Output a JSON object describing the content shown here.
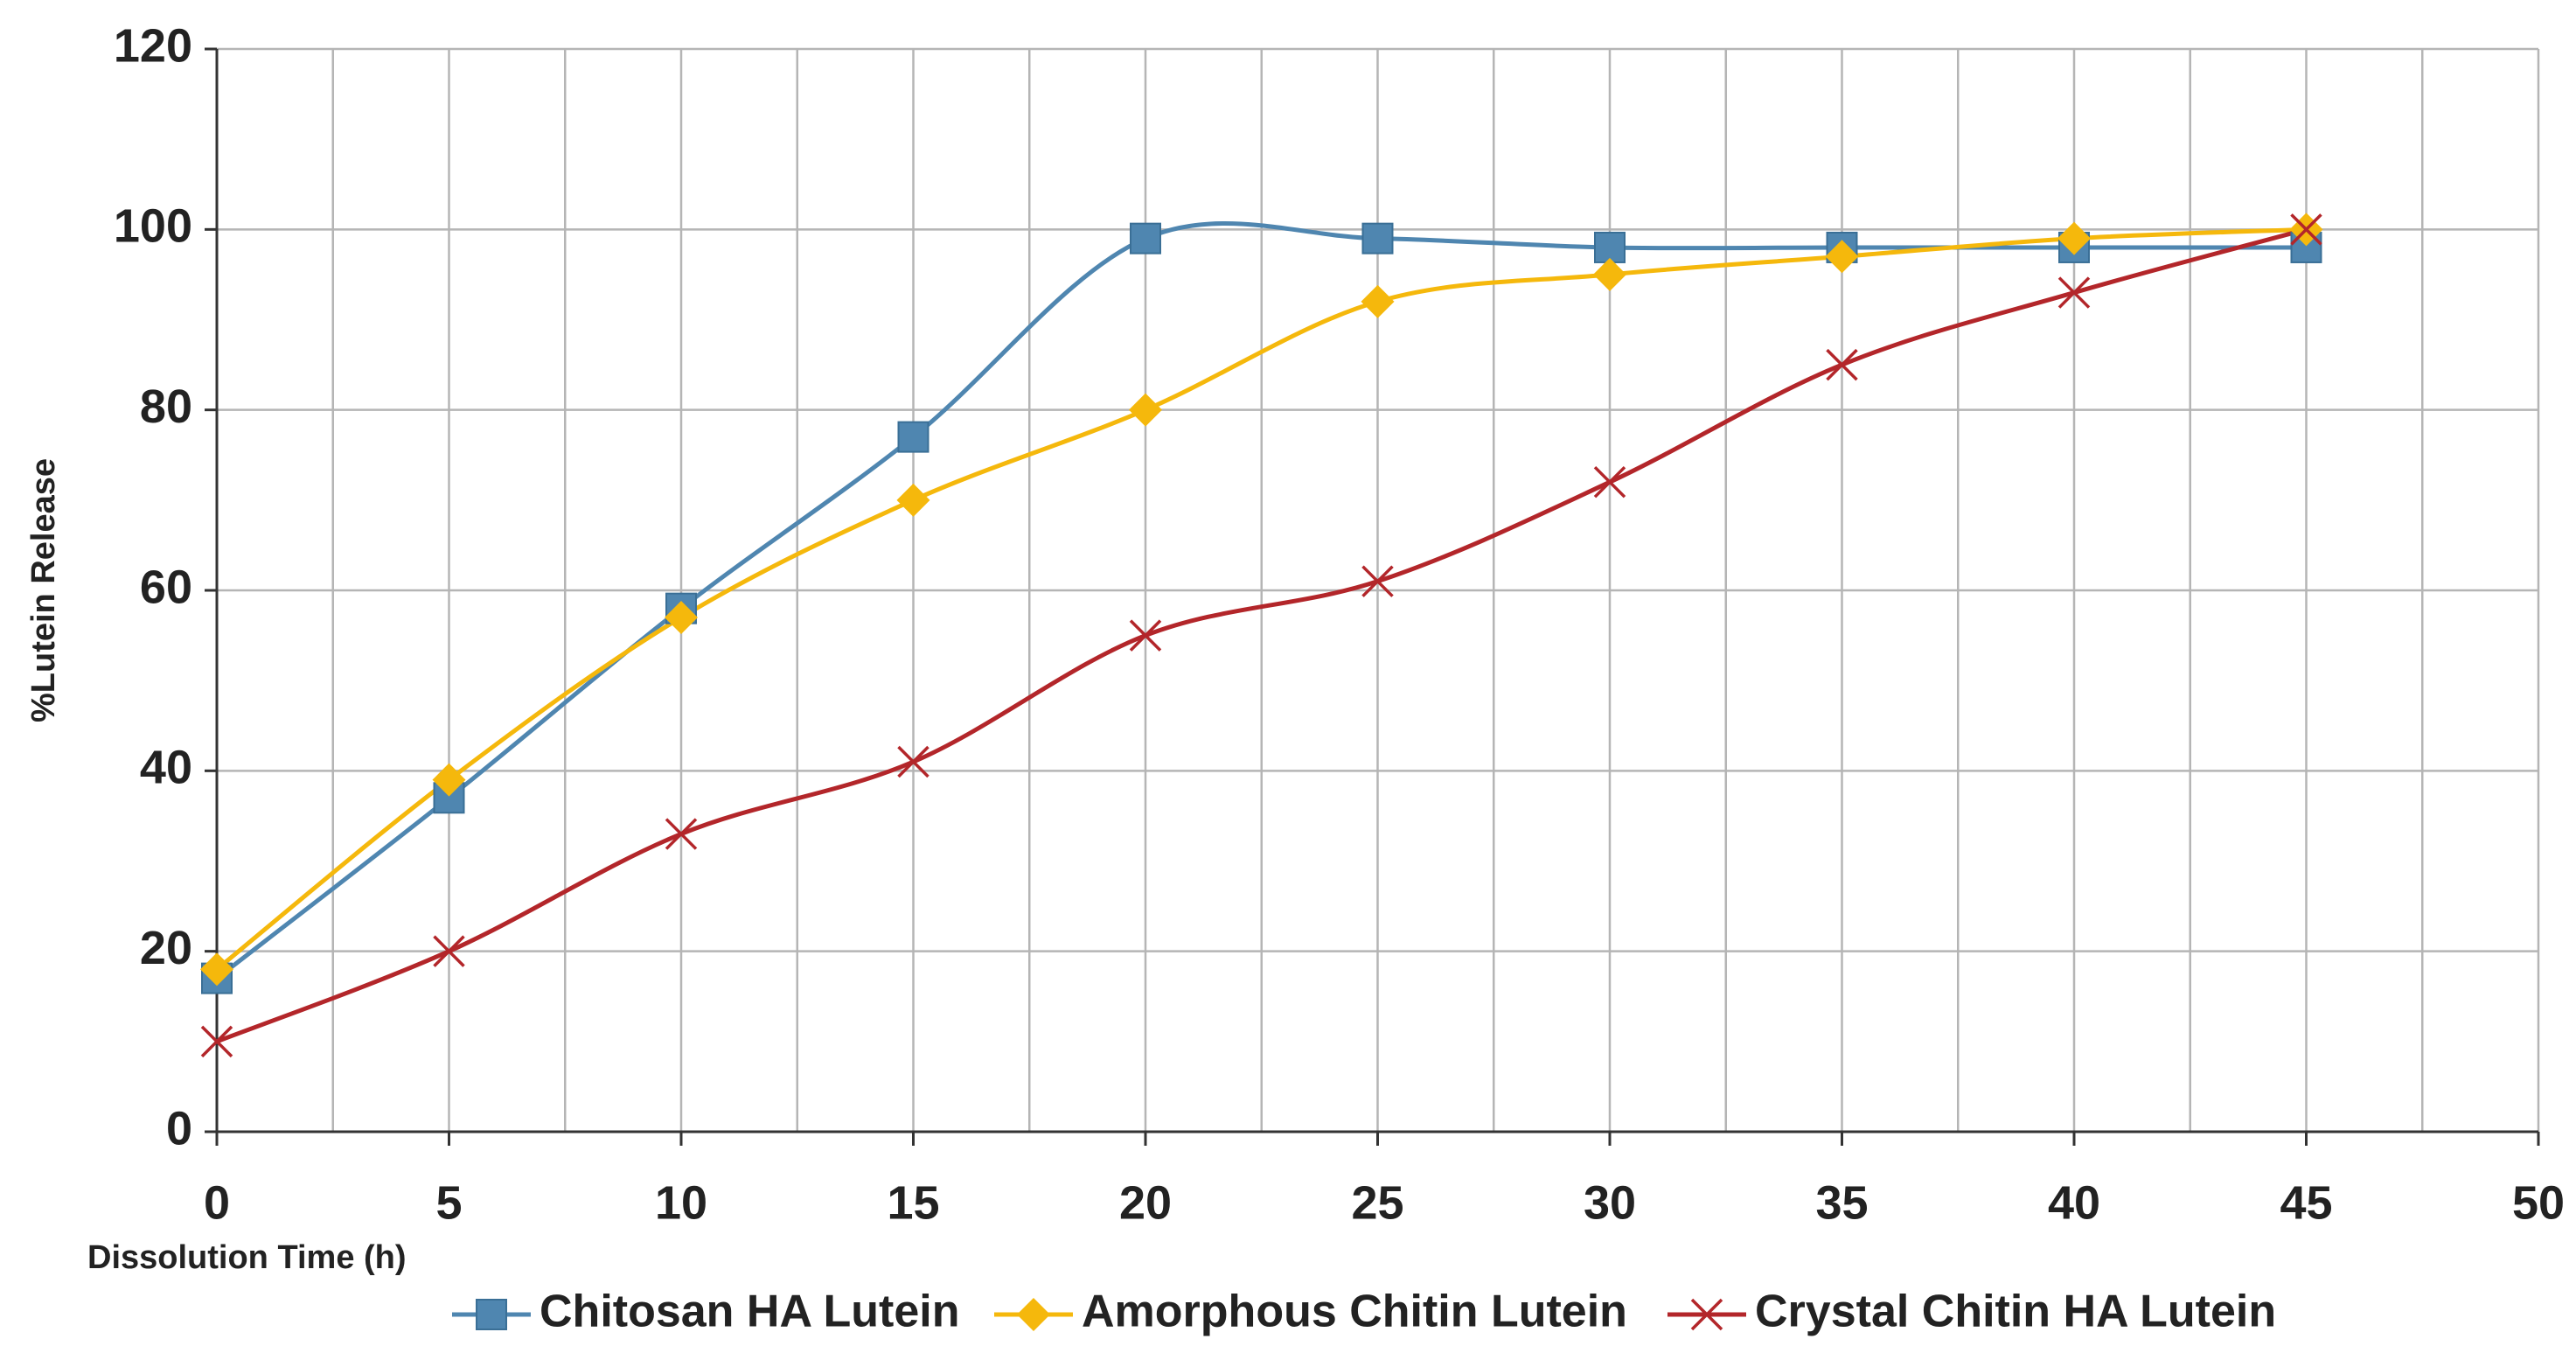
{
  "chart_data": {
    "type": "line",
    "x_label": "Dissolution Time (h)",
    "y_label": "%Lutein Release",
    "x": [
      0,
      5,
      10,
      15,
      20,
      25,
      30,
      35,
      40,
      45
    ],
    "series": [
      {
        "name": "Chitosan HA Lutein",
        "color": "#4f86b0",
        "marker": "square",
        "values": [
          17,
          37,
          58,
          77,
          99,
          99,
          98,
          98,
          98,
          98
        ]
      },
      {
        "name": "Amorphous Chitin Lutein",
        "color": "#f5b80c",
        "marker": "diamond",
        "values": [
          18,
          39,
          57,
          70,
          80,
          92,
          95,
          97,
          99,
          100
        ]
      },
      {
        "name": "Crystal Chitin HA Lutein",
        "color": "#b3262a",
        "marker": "x",
        "values": [
          10,
          20,
          33,
          41,
          55,
          61,
          72,
          85,
          93,
          100
        ]
      }
    ],
    "xlim": [
      0,
      50
    ],
    "xticks": [
      0,
      5,
      10,
      15,
      20,
      25,
      30,
      35,
      40,
      45,
      50
    ],
    "xminorticks": [
      2.5,
      7.5,
      12.5,
      17.5,
      22.5,
      27.5,
      32.5,
      37.5,
      42.5,
      47.5
    ],
    "ylim": [
      0,
      120
    ],
    "yticks": [
      0,
      20,
      40,
      60,
      80,
      100,
      120
    ],
    "grid": true,
    "smooth": true,
    "legend": "bottom"
  }
}
